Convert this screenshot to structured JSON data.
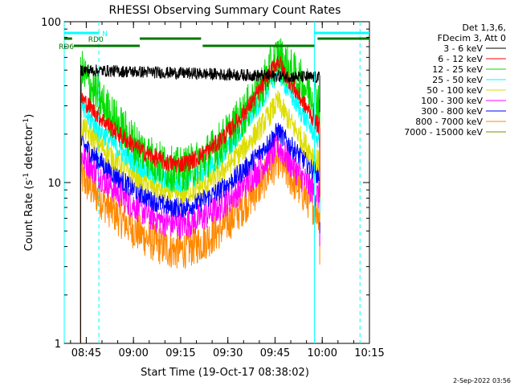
{
  "chart_data": {
    "type": "line",
    "title": "RHESSI Observing Summary Count Rates",
    "xlabel": "Start Time (19-Oct-17 08:38:02)",
    "ylabel": "Count Rate (s",
    "ylabel_sup": "-1",
    "ylabel_tail": " detector",
    "ylabel_sup2": "-1",
    "ylabel_close": ")",
    "yscale": "log",
    "ylim": [
      1,
      100
    ],
    "xlim_minutes": [
      0,
      97
    ],
    "x_ticks": [
      {
        "label": "08:45",
        "min": 7
      },
      {
        "label": "09:00",
        "min": 22
      },
      {
        "label": "09:15",
        "min": 37
      },
      {
        "label": "09:30",
        "min": 52
      },
      {
        "label": "09:45",
        "min": 67
      },
      {
        "label": "10:00",
        "min": 82
      },
      {
        "label": "10:15",
        "min": 97
      }
    ],
    "y_ticks": [
      {
        "label": "100",
        "value": 100
      },
      {
        "label": "10",
        "value": 10
      },
      {
        "label": "1",
        "value": 1
      }
    ],
    "legend_header": [
      "Det 1,3,6,",
      "FDecim 3, Att 0"
    ],
    "series": [
      {
        "name": "3 - 6 keV",
        "color": "#000000",
        "start": 50,
        "min": 48,
        "end": 45,
        "noise": 0.04
      },
      {
        "name": "6 - 12 keV",
        "color": "#ff0000",
        "start": 34,
        "min": 13,
        "peak": 58,
        "end": 22,
        "noise": 0.06
      },
      {
        "name": "12 - 25 keV",
        "color": "#00dd00",
        "start": 50,
        "min": 12,
        "peak": 62,
        "end": 32,
        "noise": 0.15
      },
      {
        "name": "25 - 50 keV",
        "color": "#00ffff",
        "start": 29,
        "min": 10,
        "peak": 50,
        "end": 18,
        "noise": 0.07
      },
      {
        "name": "50 - 100 keV",
        "color": "#dddd00",
        "start": 23,
        "min": 8.5,
        "peak": 32,
        "end": 13,
        "noise": 0.08
      },
      {
        "name": "100 - 300 keV",
        "color": "#ff00ff",
        "start": 15,
        "min": 5.5,
        "peak": 17,
        "end": 8,
        "noise": 0.1
      },
      {
        "name": "300 - 800 keV",
        "color": "#0000ff",
        "start": 18,
        "min": 7,
        "peak": 21,
        "end": 11,
        "noise": 0.07
      },
      {
        "name": "800 - 7000 keV",
        "color": "#ff8800",
        "start": 11,
        "min": 3.8,
        "peak": 14,
        "end": 6.5,
        "noise": 0.13
      },
      {
        "name": "7000 - 15000 keV",
        "color": "#888800",
        "start": null,
        "min": null,
        "peak": null,
        "end": null,
        "noise": 0
      }
    ],
    "data_start_min": 5.2,
    "data_end_min": 81.2,
    "peak_min": 68,
    "min_min": 36,
    "annotations": [
      {
        "label": "N",
        "color": "#00ffff",
        "segments": [
          [
            0,
            11
          ],
          [
            79.5,
            97
          ]
        ],
        "row": 1
      },
      {
        "label": "RD0",
        "color": "#007700",
        "segments": [
          [
            0,
            2.5
          ],
          [
            24,
            43.5
          ],
          [
            80.5,
            97
          ]
        ],
        "row": 2
      },
      {
        "label": "RD6",
        "color": "#007700",
        "segments": [
          [
            3,
            24
          ],
          [
            44,
            79.5
          ]
        ],
        "row": 3
      }
    ],
    "vlines_solid": [
      {
        "min": 0,
        "color": "#00ffff"
      },
      {
        "min": 79.5,
        "color": "#00ffff"
      }
    ],
    "vlines_dashed": [
      {
        "min": 11,
        "color": "#00ffff"
      },
      {
        "min": 94,
        "color": "#00ffff"
      }
    ]
  },
  "footer_date": "2-Sep-2022 03:56"
}
